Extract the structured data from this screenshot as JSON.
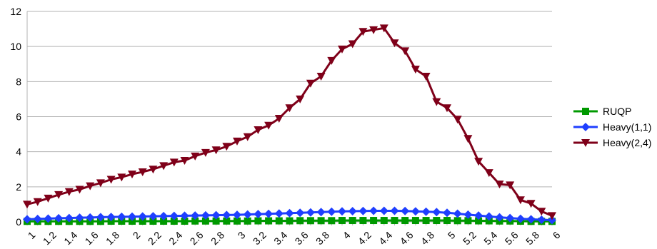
{
  "chart_data": {
    "type": "line",
    "x": [
      "1",
      "1.1",
      "1.2",
      "1.3",
      "1.4",
      "1.5",
      "1.6",
      "1.7",
      "1.8",
      "1.9",
      "2",
      "2.1",
      "2.2",
      "2.3",
      "2.4",
      "2.5",
      "2.6",
      "2.7",
      "2.8",
      "2.9",
      "3",
      "3.1",
      "3.2",
      "3.3",
      "3.4",
      "3.5",
      "3.6",
      "3.7",
      "3.8",
      "3.9",
      "4",
      "4.1",
      "4.2",
      "4.3",
      "4.4",
      "4.5",
      "4.6",
      "4.7",
      "4.8",
      "4.9",
      "5",
      "5.1",
      "5.2",
      "5.3",
      "5.4",
      "5.5",
      "5.6",
      "5.7",
      "5.8",
      "5.9",
      "6"
    ],
    "x_tick_labels": [
      "1",
      "1.2",
      "1.4",
      "1.6",
      "1.8",
      "2",
      "2.2",
      "2.4",
      "2.6",
      "2.8",
      "3",
      "3.2",
      "3.4",
      "3.6",
      "3.8",
      "4",
      "4.2",
      "4.4",
      "4.6",
      "4.8",
      "5",
      "5.2",
      "5.4",
      "5.6",
      "5.8",
      "6"
    ],
    "y_ticks": [
      "0",
      "2",
      "4",
      "6",
      "8",
      "10",
      "12"
    ],
    "ylim": [
      0,
      12
    ],
    "grid": true,
    "legend_position": "right",
    "series": [
      {
        "name": "RUQP",
        "color": "#009900",
        "marker": "square",
        "values": [
          0.03,
          0.03,
          0.03,
          0.03,
          0.03,
          0.03,
          0.03,
          0.03,
          0.04,
          0.04,
          0.04,
          0.04,
          0.04,
          0.04,
          0.04,
          0.04,
          0.05,
          0.05,
          0.05,
          0.05,
          0.05,
          0.05,
          0.06,
          0.06,
          0.06,
          0.06,
          0.07,
          0.07,
          0.07,
          0.07,
          0.08,
          0.08,
          0.08,
          0.08,
          0.08,
          0.08,
          0.08,
          0.08,
          0.08,
          0.08,
          0.08,
          0.07,
          0.07,
          0.06,
          0.06,
          0.05,
          0.05,
          0.04,
          0.03,
          0.03,
          0.03
        ]
      },
      {
        "name": "Heavy(1,1)",
        "color": "#1f3fff",
        "marker": "diamond",
        "values": [
          0.15,
          0.17,
          0.19,
          0.21,
          0.22,
          0.24,
          0.25,
          0.27,
          0.28,
          0.29,
          0.3,
          0.31,
          0.32,
          0.33,
          0.34,
          0.35,
          0.36,
          0.37,
          0.38,
          0.39,
          0.4,
          0.42,
          0.44,
          0.46,
          0.48,
          0.5,
          0.52,
          0.54,
          0.56,
          0.58,
          0.6,
          0.61,
          0.62,
          0.63,
          0.63,
          0.63,
          0.62,
          0.6,
          0.58,
          0.56,
          0.52,
          0.47,
          0.41,
          0.36,
          0.31,
          0.26,
          0.22,
          0.18,
          0.15,
          0.12,
          0.1
        ]
      },
      {
        "name": "Heavy(2,4)",
        "color": "#7f0019",
        "marker": "triangle-down",
        "values": [
          1.0,
          1.15,
          1.35,
          1.55,
          1.72,
          1.85,
          2.05,
          2.22,
          2.42,
          2.55,
          2.72,
          2.85,
          3.0,
          3.2,
          3.4,
          3.5,
          3.75,
          3.95,
          4.1,
          4.3,
          4.6,
          4.85,
          5.25,
          5.5,
          5.9,
          6.5,
          7.0,
          7.9,
          8.3,
          9.2,
          9.85,
          10.15,
          10.85,
          10.95,
          11.05,
          10.2,
          9.75,
          8.7,
          8.3,
          6.85,
          6.5,
          5.85,
          4.75,
          3.45,
          2.8,
          2.15,
          2.1,
          1.25,
          1.05,
          0.6,
          0.35
        ]
      }
    ]
  }
}
